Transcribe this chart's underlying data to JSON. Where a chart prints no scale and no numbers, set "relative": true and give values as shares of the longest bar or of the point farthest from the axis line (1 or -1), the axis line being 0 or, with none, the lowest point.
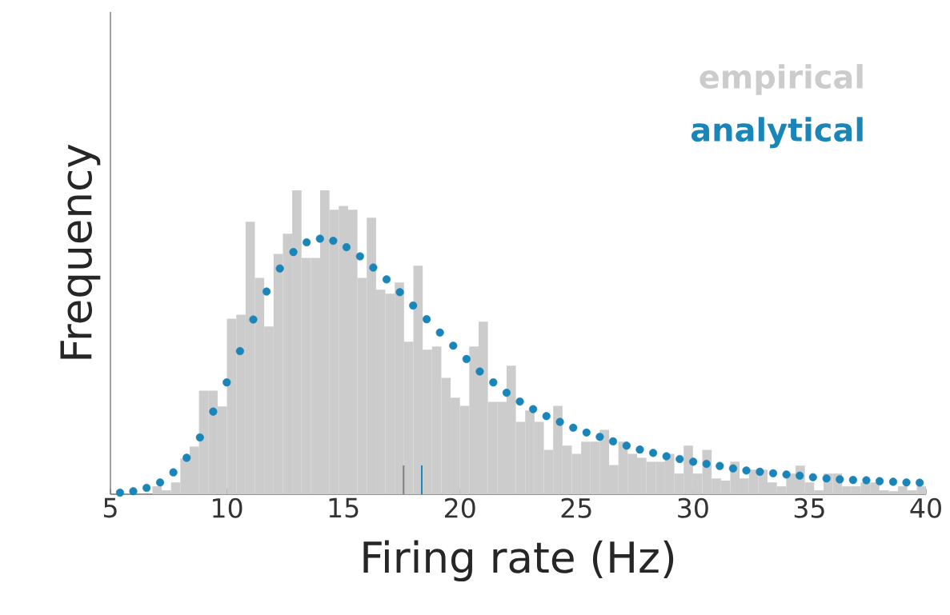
{
  "chart_data": {
    "type": "histogram",
    "relative": true,
    "xlabel": "Firing rate (Hz)",
    "ylabel": "Frequency",
    "xlim": [
      5,
      40
    ],
    "xticks": [
      5,
      10,
      15,
      20,
      25,
      30,
      35,
      40
    ],
    "legend": "top right",
    "marker": "circle",
    "bins": [
      6.8,
      7.2,
      7.6,
      8.0,
      8.4,
      8.8,
      9.2,
      9.6,
      10.0,
      10.4,
      10.8,
      11.2,
      11.6,
      12.0,
      12.4,
      12.8,
      13.2,
      13.6,
      14.0,
      14.4,
      14.8,
      15.2,
      15.6,
      16.0,
      16.4,
      16.8,
      17.2,
      17.6,
      18.0,
      18.4,
      18.8,
      19.2,
      19.6,
      20.0,
      20.4,
      20.8,
      21.2,
      21.6,
      22.0,
      22.4,
      22.8,
      23.2,
      23.6,
      24.0,
      24.4,
      24.8,
      25.2,
      25.6,
      26.0,
      26.4,
      26.8,
      27.2,
      27.6,
      28.0,
      28.4,
      28.8,
      29.2,
      29.6,
      30.0,
      30.4,
      30.8,
      31.2,
      31.6,
      32.0,
      32.4,
      32.8,
      33.2,
      33.6,
      34.0,
      34.4,
      34.8,
      35.2,
      35.6,
      36.0,
      36.4,
      36.8,
      37.2,
      37.6,
      38.0,
      38.4,
      38.8,
      39.2,
      39.6,
      40.0
    ],
    "series": [
      {
        "name": "empirical",
        "color": "#cccccc",
        "values": [
          0.026,
          0.013,
          0.039,
          0.118,
          0.157,
          0.341,
          0.341,
          0.289,
          0.578,
          0.591,
          0.897,
          0.712,
          0.552,
          0.791,
          0.857,
          1.0,
          0.778,
          0.778,
          1.0,
          0.936,
          0.949,
          0.936,
          0.712,
          0.91,
          0.673,
          0.66,
          0.697,
          0.502,
          0.752,
          0.476,
          0.486,
          0.383,
          0.318,
          0.291,
          0.486,
          0.568,
          0.304,
          0.304,
          0.423,
          0.238,
          0.276,
          0.238,
          0.146,
          0.291,
          0.16,
          0.133,
          0.173,
          0.173,
          0.212,
          0.096,
          0.173,
          0.133,
          0.12,
          0.107,
          0.107,
          0.133,
          0.068,
          0.16,
          0.068,
          0.146,
          0.052,
          0.045,
          0.107,
          0.052,
          0.081,
          0.081,
          0.039,
          0.026,
          0.068,
          0.094,
          0.039,
          0.013,
          0.068,
          0.068,
          0.026,
          0.026,
          0.039,
          0.039,
          0.013,
          0.01,
          0.026,
          0.013,
          0.026
        ]
      },
      {
        "name": "analytical",
        "type": "scatter",
        "color": "#1a85b9",
        "x": [
          5.41,
          5.98,
          6.55,
          7.13,
          7.7,
          8.27,
          8.84,
          9.41,
          9.99,
          10.56,
          11.13,
          11.7,
          12.27,
          12.85,
          13.42,
          13.99,
          14.56,
          15.13,
          15.71,
          16.28,
          16.85,
          17.42,
          17.99,
          18.57,
          19.14,
          19.71,
          20.28,
          20.85,
          21.43,
          22.0,
          22.57,
          23.14,
          23.71,
          24.29,
          24.86,
          25.43,
          26.0,
          26.57,
          27.15,
          27.72,
          28.29,
          28.86,
          29.43,
          30.01,
          30.58,
          31.15,
          31.72,
          32.29,
          32.87,
          33.44,
          34.01,
          34.58,
          35.15,
          35.73,
          36.3,
          36.87,
          37.44,
          38.01,
          38.59,
          39.16,
          39.73
        ],
        "values": [
          0.005,
          0.01,
          0.021,
          0.039,
          0.072,
          0.12,
          0.187,
          0.272,
          0.368,
          0.471,
          0.575,
          0.667,
          0.743,
          0.797,
          0.829,
          0.841,
          0.834,
          0.813,
          0.783,
          0.746,
          0.707,
          0.665,
          0.621,
          0.576,
          0.532,
          0.489,
          0.445,
          0.404,
          0.368,
          0.334,
          0.305,
          0.28,
          0.257,
          0.238,
          0.219,
          0.203,
          0.189,
          0.174,
          0.16,
          0.147,
          0.136,
          0.125,
          0.116,
          0.107,
          0.1,
          0.093,
          0.085,
          0.078,
          0.074,
          0.069,
          0.065,
          0.061,
          0.056,
          0.052,
          0.049,
          0.047,
          0.046,
          0.043,
          0.041,
          0.039,
          0.038
        ]
      }
    ],
    "ref_lines": [
      {
        "axis": "x",
        "value": 17.58,
        "color": "#808080"
      },
      {
        "axis": "x",
        "value": 18.36,
        "color": "#1a85b9"
      }
    ]
  }
}
